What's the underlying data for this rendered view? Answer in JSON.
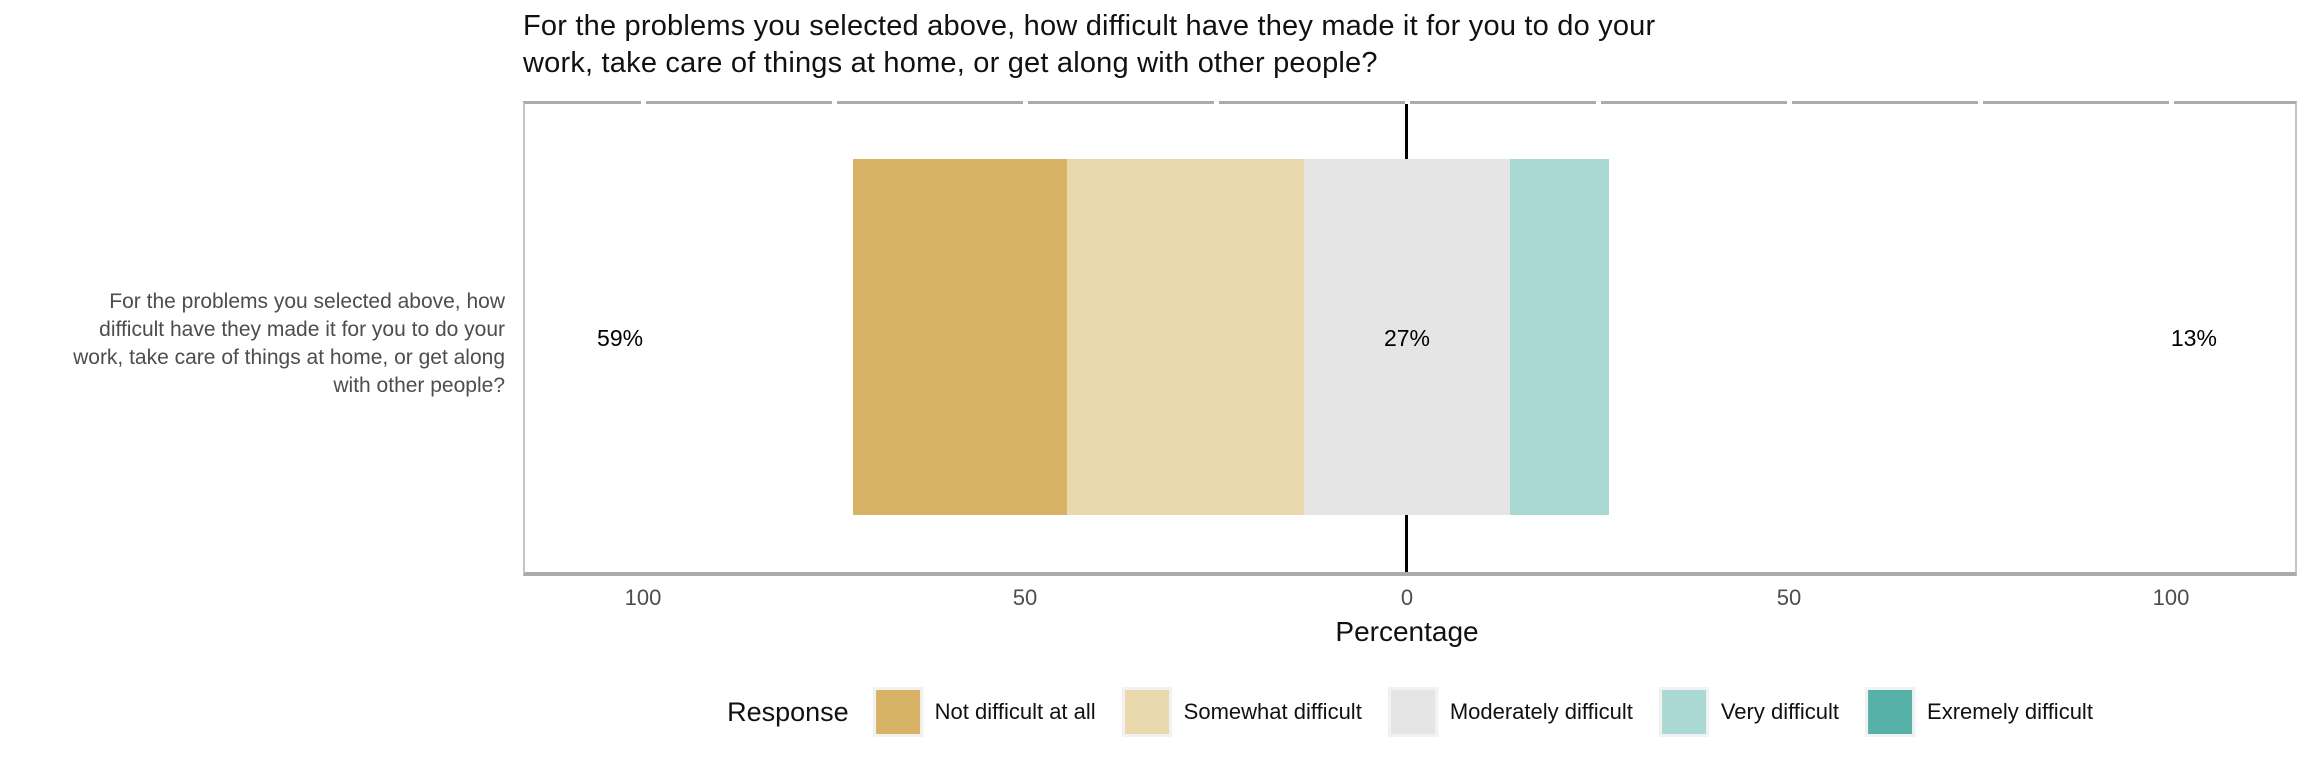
{
  "page": {
    "background": "#ffffff"
  },
  "chart_data": {
    "type": "bar",
    "subtype": "diverging-stacked-likert",
    "orientation": "horizontal",
    "title_lines": [
      "For the problems you selected above, how difficult have they made it for you to do your",
      "work, take care of things at home, or get along with other people?"
    ],
    "category_label_lines": [
      "For the problems you selected above, how",
      "difficult have they made it for you to do your",
      "work, take care of things at home, or get along",
      "with other people?"
    ],
    "xlabel": "Percentage",
    "x_tick_labels": [
      "100",
      "50",
      "0",
      "50",
      "100"
    ],
    "x_tick_values": [
      -100,
      -50,
      0,
      50,
      100
    ],
    "xlim": [
      -115,
      116
    ],
    "grid": false,
    "zero_line": true,
    "legend_title": "Response",
    "legend_position": "bottom",
    "series": [
      {
        "name": "Not difficult at all",
        "value": 28,
        "color": "#d8b365"
      },
      {
        "name": "Somewhat difficult",
        "value": 31,
        "color": "#ebd9ae"
      },
      {
        "name": "Moderately difficult",
        "value": 27,
        "color": "#e5e5e5"
      },
      {
        "name": "Very difficult",
        "value": 13,
        "color": "#aad8d3"
      },
      {
        "name": "Exremely difficult",
        "value": 0,
        "color": "#56b1a9"
      }
    ],
    "bar": {
      "left_pct": -72.5,
      "right_pct": 26.5,
      "neutral_center": 0
    },
    "summary_labels": [
      {
        "text": "59%",
        "x_pct": -103
      },
      {
        "text": "27%",
        "x_pct": 0
      },
      {
        "text": "13%",
        "x_pct": 103
      }
    ]
  },
  "colors": {
    "panel_border": "#c4c4c4",
    "axis_line": "#ababab",
    "tick_text": "#4d4d4d",
    "category_text": "#4d4d4d",
    "title_text": "#111111",
    "zero_line": "#000000",
    "legend_key_bg": "#f2f2f2"
  }
}
